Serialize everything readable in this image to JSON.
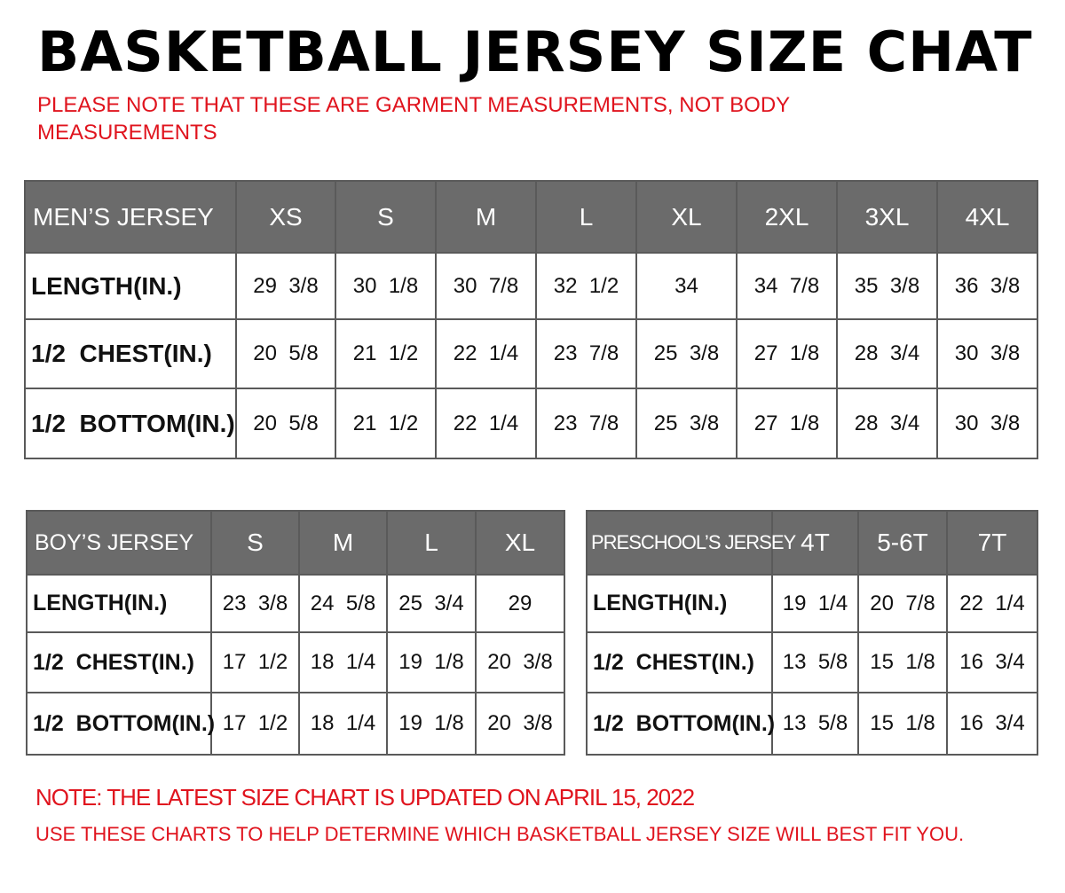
{
  "title": "BASKETBALL JERSEY SIZE CHAT",
  "subtitle": "PLEASE NOTE THAT THESE ARE GARMENT MEASUREMENTS, NOT BODY MEASUREMENTS",
  "colors": {
    "header_bg": "#6b6b6b",
    "note_red": "#e0141e"
  },
  "tables": {
    "men": {
      "header": [
        "MEN’S JERSEY",
        "XS",
        "S",
        "M",
        "L",
        "XL",
        "2XL",
        "3XL",
        "4XL"
      ],
      "rows": [
        [
          "LENGTH(IN.)",
          "29  3/8",
          "30  1/8",
          "30  7/8",
          "32  1/2",
          "34",
          "34  7/8",
          "35  3/8",
          "36  3/8"
        ],
        [
          "1/2  CHEST(IN.)",
          "20  5/8",
          "21  1/2",
          "22  1/4",
          "23  7/8",
          "25  3/8",
          "27  1/8",
          "28  3/4",
          "30  3/8"
        ],
        [
          "1/2  BOTTOM(IN.)",
          "20  5/8",
          "21  1/2",
          "22  1/4",
          "23  7/8",
          "25  3/8",
          "27  1/8",
          "28  3/4",
          "30  3/8"
        ]
      ]
    },
    "boy": {
      "header": [
        "BOY’S JERSEY",
        "S",
        "M",
        "L",
        "XL"
      ],
      "rows": [
        [
          "LENGTH(IN.)",
          "23  3/8",
          "24  5/8",
          "25  3/4",
          "29"
        ],
        [
          "1/2  CHEST(IN.)",
          "17  1/2",
          "18  1/4",
          "19  1/8",
          "20  3/8"
        ],
        [
          "1/2  BOTTOM(IN.)",
          "17  1/2",
          "18  1/4",
          "19  1/8",
          "20  3/8"
        ]
      ]
    },
    "pre": {
      "header": [
        "PRESCHOOL’S JERSEY",
        "4T",
        "5-6T",
        "7T"
      ],
      "rows": [
        [
          "LENGTH(IN.)",
          "19  1/4",
          "20  7/8",
          "22  1/4"
        ],
        [
          "1/2  CHEST(IN.)",
          "13  5/8",
          "15  1/8",
          "16  3/4"
        ],
        [
          "1/2  BOTTOM(IN.)",
          "13  5/8",
          "15  1/8",
          "16  3/4"
        ]
      ]
    }
  },
  "notes": {
    "updated": "NOTE: THE LATEST SIZE CHART IS UPDATED ON APRIL 15, 2022",
    "usage": "USE THESE CHARTS TO HELP DETERMINE WHICH  BASKETBALL JERSEY  SIZE WILL BEST FIT YOU."
  }
}
